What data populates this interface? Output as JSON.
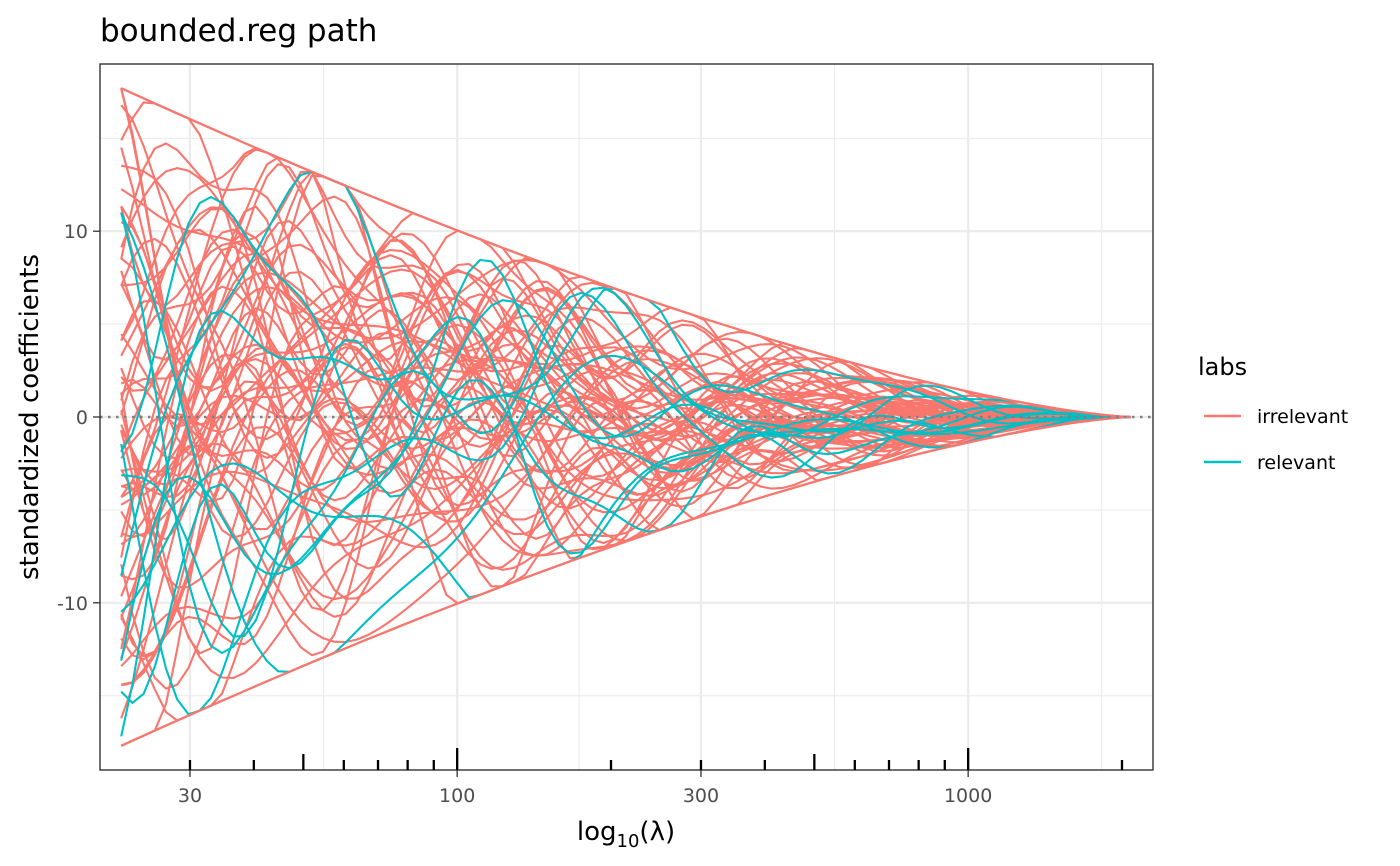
{
  "chart_data": {
    "type": "line",
    "title": "bounded.reg path",
    "xlabel_base": "log",
    "xlabel_sub": "10",
    "xlabel_arg": "(λ)",
    "ylabel": "standardized coefficients",
    "x_scale": "log10",
    "xlim": [
      20,
      2300
    ],
    "ylim": [
      -19,
      19
    ],
    "x_ticks": [
      30,
      100,
      300,
      1000
    ],
    "x_tick_labels": [
      "30",
      "100",
      "300",
      "1000"
    ],
    "y_ticks": [
      -10,
      0,
      10
    ],
    "y_tick_labels": [
      "-10",
      "0",
      "10"
    ],
    "x_range_data": [
      22,
      2080
    ],
    "bound_at_min_lambda": 17.7,
    "grid": "on",
    "reference_line_y": 0,
    "legend_title": "labs",
    "legend_position": "right",
    "series": [
      {
        "name": "irrelevant",
        "color": "#F8766D",
        "count": 60
      },
      {
        "name": "relevant",
        "color": "#00BFC4",
        "count": 10
      }
    ]
  }
}
